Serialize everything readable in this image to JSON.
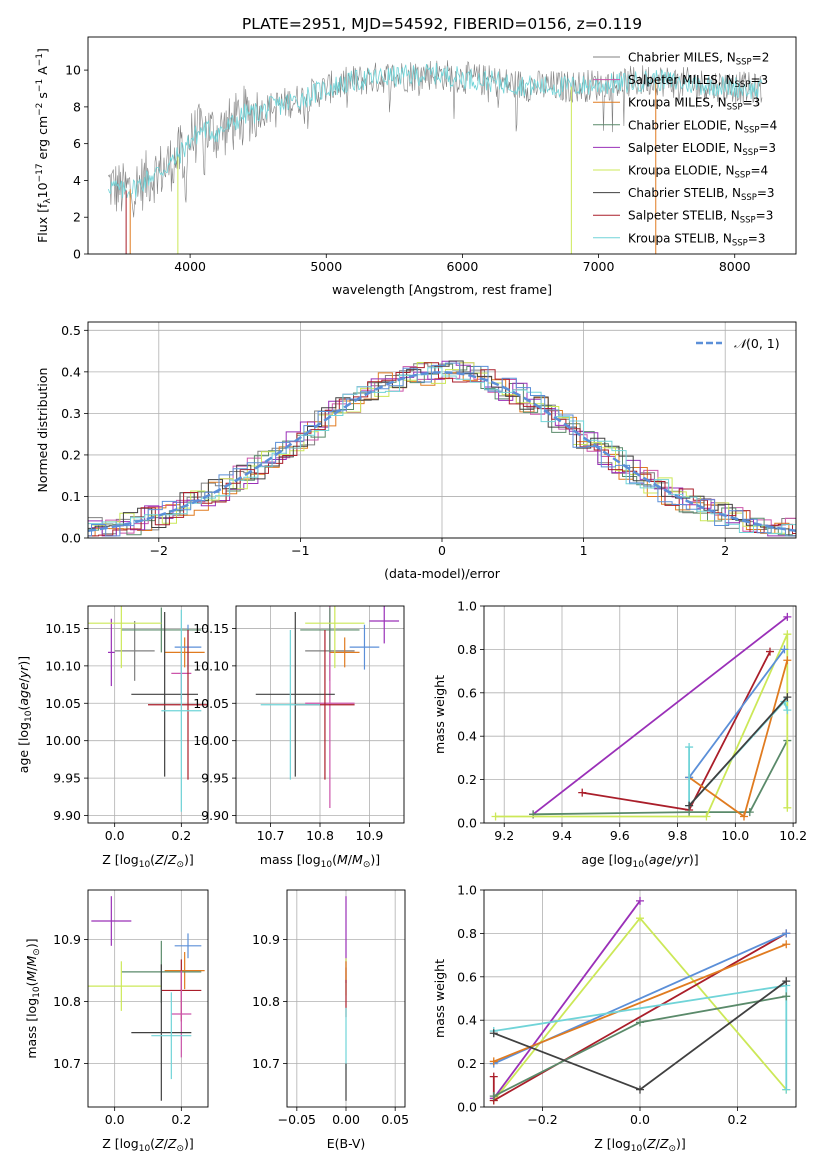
{
  "figure_title": "PLATE=2951, MJD=54592, FIBERID=0156, z=0.119",
  "colors": {
    "grey": "#808080",
    "mag": "#cc55aa",
    "orange": "#e07b20",
    "green": "#5a8a6a",
    "purple": "#9a30b8",
    "ylgreen": "#cce858",
    "dark": "#404040",
    "red": "#aa1e2a",
    "cyan": "#70d4d8",
    "blue": "#5b8fd8",
    "pink": "#e86aa0"
  },
  "chart_data": [
    {
      "id": "spectrum",
      "type": "line",
      "xlabel": "wavelength [Angstrom, rest frame]",
      "ylabel": "Flux [f_λ10^-17 erg cm^-2 s^-1 A^-1]",
      "xlim": [
        3250,
        8450
      ],
      "ylim": [
        0,
        11.8
      ],
      "xticks": [
        4000,
        5000,
        6000,
        7000,
        8000
      ],
      "yticks": [
        0,
        2,
        4,
        6,
        8,
        10
      ],
      "grid": false,
      "legend_position": "top-right",
      "continuum": {
        "x": [
          3400,
          3500,
          3600,
          3700,
          3800,
          3900,
          4000,
          4100,
          4200,
          4300,
          4400,
          4500,
          4600,
          4700,
          4800,
          5000,
          5200,
          5400,
          5600,
          5800,
          6000,
          6200,
          6400,
          6600,
          6800,
          7000,
          7200,
          7400,
          7600,
          7800,
          8000,
          8200
        ],
        "y": [
          3.8,
          3.4,
          3.6,
          4.2,
          4.6,
          5.2,
          6.2,
          6.8,
          6.6,
          7.0,
          7.6,
          7.7,
          8.0,
          8.2,
          8.4,
          9.0,
          9.4,
          9.6,
          9.7,
          9.8,
          9.6,
          9.4,
          9.2,
          9.1,
          9.1,
          9.2,
          9.3,
          9.5,
          9.3,
          9.2,
          9.1,
          8.9
        ]
      },
      "series": [
        {
          "name": "Chabrier MILES",
          "nssp": "2"
        },
        {
          "name": "Salpeter MILES",
          "nssp": "3"
        },
        {
          "name": "Kroupa MILES",
          "nssp": "3"
        },
        {
          "name": "Chabrier ELODIE",
          "nssp": "4"
        },
        {
          "name": "Salpeter ELODIE",
          "nssp": "3"
        },
        {
          "name": "Kroupa ELODIE",
          "nssp": "4"
        },
        {
          "name": "Chabrier STELIB",
          "nssp": "3"
        },
        {
          "name": "Salpeter STELIB",
          "nssp": "3"
        },
        {
          "name": "Kroupa STELIB",
          "nssp": "3"
        }
      ]
    },
    {
      "id": "residuals",
      "type": "histogram",
      "xlabel": "(data-model)/error",
      "ylabel": "Normed distribution",
      "xlim": [
        -2.5,
        2.5
      ],
      "ylim": [
        0,
        0.52
      ],
      "xticks": [
        -2,
        -1,
        0,
        1,
        2
      ],
      "yticks": [
        0.0,
        0.1,
        0.2,
        0.3,
        0.4,
        0.5
      ],
      "grid": true,
      "legend": "N(0,1)",
      "legend_position": "top-right"
    },
    {
      "id": "age_vs_Z",
      "type": "scatter",
      "xlabel": "Z [log10(Z/Z☉)]",
      "ylabel": "age [log10(age/yr)]",
      "xlim": [
        -0.08,
        0.28
      ],
      "ylim": [
        9.89,
        10.18
      ],
      "xticks": [
        0.0,
        0.2
      ],
      "yticks": [
        9.9,
        9.95,
        10.0,
        10.05,
        10.1,
        10.15
      ],
      "grid": true,
      "points": [
        {
          "c": "grey",
          "x": 0.06,
          "y": 10.12,
          "xe": 0.06,
          "ye": 0.04
        },
        {
          "c": "mag",
          "x": 0.2,
          "y": 10.09,
          "xe": 0.03,
          "ye": 0.035
        },
        {
          "c": "orange",
          "x": 0.21,
          "y": 10.118,
          "xe": 0.06,
          "ye": 0.02
        },
        {
          "c": "blue",
          "x": 0.22,
          "y": 10.125,
          "xe": 0.04,
          "ye": 0.03
        },
        {
          "c": "green",
          "x": 0.14,
          "y": 10.148,
          "xe": 0.12,
          "ye": 0.03
        },
        {
          "c": "purple",
          "x": -0.01,
          "y": 10.118,
          "xe": 0.01,
          "ye": 0.045
        },
        {
          "c": "ylgreen",
          "x": 0.02,
          "y": 10.157,
          "xe": 0.12,
          "ye": 0.06
        },
        {
          "c": "dark",
          "x": 0.15,
          "y": 10.062,
          "xe": 0.1,
          "ye": 0.11
        },
        {
          "c": "red",
          "x": 0.22,
          "y": 10.048,
          "xe": 0.12,
          "ye": 0.1
        },
        {
          "c": "cyan",
          "x": 0.2,
          "y": 10.04,
          "xe": 0.06,
          "ye": 0.135
        }
      ]
    },
    {
      "id": "age_vs_mass",
      "type": "scatter",
      "xlabel": "mass [log10(M/M☉)]",
      "ylabel": "",
      "xlim": [
        10.63,
        10.97
      ],
      "ylim": [
        9.89,
        10.18
      ],
      "xticks": [
        10.7,
        10.8,
        10.9
      ],
      "yticks": [
        9.9,
        9.95,
        10.0,
        10.05,
        10.1,
        10.15
      ],
      "grid": true,
      "points": [
        {
          "c": "grey",
          "x": 10.82,
          "y": 10.12,
          "xe": 0.05,
          "ye": 0.04
        },
        {
          "c": "mag",
          "x": 10.82,
          "y": 10.05,
          "xe": 0.05,
          "ye": 0.14
        },
        {
          "c": "orange",
          "x": 10.85,
          "y": 10.118,
          "xe": 0.03,
          "ye": 0.02
        },
        {
          "c": "blue",
          "x": 10.89,
          "y": 10.125,
          "xe": 0.03,
          "ye": 0.03
        },
        {
          "c": "green",
          "x": 10.82,
          "y": 10.148,
          "xe": 0.06,
          "ye": 0.03
        },
        {
          "c": "purple",
          "x": 10.93,
          "y": 10.16,
          "xe": 0.03,
          "ye": 0.03
        },
        {
          "c": "ylgreen",
          "x": 10.83,
          "y": 10.157,
          "xe": 0.06,
          "ye": 0.06
        },
        {
          "c": "dark",
          "x": 10.75,
          "y": 10.062,
          "xe": 0.08,
          "ye": 0.11
        },
        {
          "c": "red",
          "x": 10.81,
          "y": 10.048,
          "xe": 0.06,
          "ye": 0.1
        },
        {
          "c": "cyan",
          "x": 10.74,
          "y": 10.048,
          "xe": 0.06,
          "ye": 0.1
        }
      ]
    },
    {
      "id": "mass_weight_vs_age",
      "type": "line",
      "xlabel": "age [log10(age/yr)]",
      "ylabel": "mass weight",
      "xlim": [
        9.13,
        10.21
      ],
      "ylim": [
        0.0,
        1.0
      ],
      "xticks": [
        9.2,
        9.4,
        9.6,
        9.8,
        10.0,
        10.2
      ],
      "yticks": [
        0.0,
        0.2,
        0.4,
        0.6,
        0.8,
        1.0
      ],
      "grid": true,
      "series": [
        {
          "c": "purple",
          "x": [
            9.3,
            10.18
          ],
          "y": [
            0.04,
            0.95
          ]
        },
        {
          "c": "red",
          "x": [
            9.47,
            9.84,
            10.12
          ],
          "y": [
            0.14,
            0.06,
            0.79
          ]
        },
        {
          "c": "green",
          "x": [
            9.3,
            9.84,
            10.05,
            10.18
          ],
          "y": [
            0.04,
            0.05,
            0.05,
            0.38
          ]
        },
        {
          "c": "ylgreen",
          "x": [
            9.17,
            9.9,
            10.18,
            10.18
          ],
          "y": [
            0.03,
            0.03,
            0.87,
            0.07
          ]
        },
        {
          "c": "orange",
          "x": [
            9.84,
            10.03,
            10.18
          ],
          "y": [
            0.21,
            0.03,
            0.75
          ]
        },
        {
          "c": "blue",
          "x": [
            9.84,
            10.17
          ],
          "y": [
            0.21,
            0.8
          ]
        },
        {
          "c": "cyan",
          "x": [
            9.84,
            9.84,
            10.17,
            10.18
          ],
          "y": [
            0.35,
            0.08,
            0.56,
            0.52
          ]
        },
        {
          "c": "dark",
          "x": [
            9.84,
            10.18
          ],
          "y": [
            0.08,
            0.58
          ]
        }
      ]
    },
    {
      "id": "mass_vs_Z",
      "type": "scatter",
      "xlabel": "Z [log10(Z/Z☉)]",
      "ylabel": "mass [log10(M/M☉)]",
      "xlim": [
        -0.08,
        0.28
      ],
      "ylim": [
        10.63,
        10.98
      ],
      "xticks": [
        0.0,
        0.2
      ],
      "yticks": [
        10.7,
        10.8,
        10.9
      ],
      "grid": true,
      "points": [
        {
          "c": "purple",
          "x": -0.01,
          "y": 10.93,
          "xe": 0.06,
          "ye": 0.04
        },
        {
          "c": "blue",
          "x": 0.22,
          "y": 10.89,
          "xe": 0.04,
          "ye": 0.02
        },
        {
          "c": "orange",
          "x": 0.21,
          "y": 10.85,
          "xe": 0.06,
          "ye": 0.03
        },
        {
          "c": "green",
          "x": 0.14,
          "y": 10.848,
          "xe": 0.12,
          "ye": 0.05
        },
        {
          "c": "ylgreen",
          "x": 0.02,
          "y": 10.825,
          "xe": 0.12,
          "ye": 0.04
        },
        {
          "c": "red",
          "x": 0.2,
          "y": 10.818,
          "xe": 0.06,
          "ye": 0.05
        },
        {
          "c": "mag",
          "x": 0.2,
          "y": 10.78,
          "xe": 0.03,
          "ye": 0.07
        },
        {
          "c": "dark",
          "x": 0.14,
          "y": 10.75,
          "xe": 0.09,
          "ye": 0.11
        },
        {
          "c": "cyan",
          "x": 0.17,
          "y": 10.745,
          "xe": 0.06,
          "ye": 0.07
        }
      ]
    },
    {
      "id": "mass_vs_ebv",
      "type": "scatter",
      "xlabel": "E(B-V)",
      "ylabel": "",
      "xlim": [
        -0.06,
        0.06
      ],
      "ylim": [
        10.63,
        10.98
      ],
      "xticks": [
        -0.05,
        0.0,
        0.05
      ],
      "yticks": [
        10.7,
        10.8,
        10.9
      ],
      "grid": true,
      "points": [
        {
          "c": "purple",
          "x": 0.0,
          "y": 10.9,
          "xe": 0,
          "ye": 0.07
        },
        {
          "c": "ylgreen",
          "x": 0.0,
          "y": 10.84,
          "xe": 0,
          "ye": 0.03
        },
        {
          "c": "red",
          "x": 0.0,
          "y": 10.815,
          "xe": 0,
          "ye": 0.04
        },
        {
          "c": "orange",
          "x": 0.0,
          "y": 10.85,
          "xe": 0,
          "ye": 0.015
        },
        {
          "c": "cyan",
          "x": 0.0,
          "y": 10.74,
          "xe": 0,
          "ye": 0.05
        },
        {
          "c": "dark",
          "x": 0.0,
          "y": 10.67,
          "xe": 0,
          "ye": 0.03
        }
      ]
    },
    {
      "id": "mass_weight_vs_Z",
      "type": "line",
      "xlabel": "Z [log10(Z/Z☉)]",
      "ylabel": "mass weight",
      "xlim": [
        -0.32,
        0.32
      ],
      "ylim": [
        0.0,
        1.0
      ],
      "xticks": [
        -0.2,
        0.0,
        0.2
      ],
      "yticks": [
        0.0,
        0.2,
        0.4,
        0.6,
        0.8,
        1.0
      ],
      "grid": true,
      "series": [
        {
          "c": "purple",
          "x": [
            -0.3,
            0.0
          ],
          "y": [
            0.04,
            0.95
          ]
        },
        {
          "c": "ylgreen",
          "x": [
            -0.3,
            0.0,
            0.3
          ],
          "y": [
            0.03,
            0.87,
            0.08
          ]
        },
        {
          "c": "red",
          "x": [
            -0.3,
            -0.3,
            0.3
          ],
          "y": [
            0.14,
            0.03,
            0.8
          ]
        },
        {
          "c": "blue",
          "x": [
            -0.3,
            0.3
          ],
          "y": [
            0.2,
            0.8
          ]
        },
        {
          "c": "orange",
          "x": [
            -0.3,
            0.3
          ],
          "y": [
            0.21,
            0.75
          ]
        },
        {
          "c": "cyan",
          "x": [
            -0.3,
            0.3,
            0.3
          ],
          "y": [
            0.35,
            0.56,
            0.08
          ]
        },
        {
          "c": "green",
          "x": [
            -0.3,
            0.0,
            0.3
          ],
          "y": [
            0.05,
            0.39,
            0.51
          ]
        },
        {
          "c": "dark",
          "x": [
            -0.3,
            0.0,
            0.3
          ],
          "y": [
            0.34,
            0.08,
            0.58
          ]
        }
      ]
    }
  ]
}
